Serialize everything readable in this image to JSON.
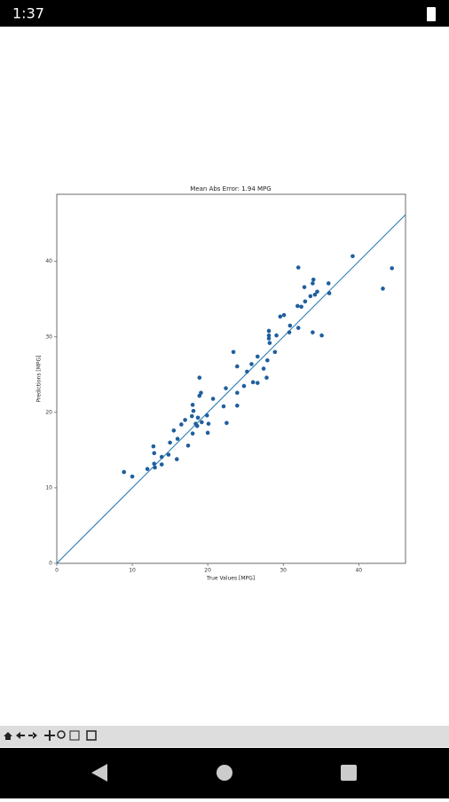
{
  "status_bar": {
    "time": "1:37"
  },
  "chart_data": {
    "type": "scatter",
    "title": "Mean Abs Error: 1.94 MPG",
    "x_label": "True Values [MPG]",
    "y_label": "Predictions [MPG]",
    "identity_line": true,
    "line_color": "#1f77b4",
    "xlim": [
      0,
      46.2
    ],
    "ylim": [
      0,
      48.9
    ],
    "xticks": [
      0,
      10,
      20,
      30,
      40
    ],
    "yticks": [
      0,
      10,
      20,
      30,
      40
    ],
    "series": [
      {
        "color": "#1f5f9e",
        "x": [
          8.9,
          10,
          12,
          12.8,
          12.9,
          12.9,
          13,
          13.9,
          13.9,
          14.8,
          15,
          15.5,
          15.9,
          16,
          16.5,
          17,
          17.4,
          17.9,
          18,
          18.1,
          18,
          18.4,
          18.6,
          18.7,
          18.9,
          19.1,
          18.9,
          19.2,
          19.9,
          20,
          20.1,
          20.7,
          22.1,
          22.4,
          22.5,
          23.4,
          23.9,
          23.9,
          23.9,
          24.8,
          25.2,
          25.8,
          26,
          26.6,
          26.6,
          27.4,
          27.8,
          27.9,
          28.1,
          28.1,
          28.1,
          28.2,
          28.9,
          29.1,
          29.6,
          30.1,
          30.8,
          30.9,
          31.9,
          32,
          32,
          32.4,
          32.8,
          32.9,
          33.6,
          33.9,
          33.9,
          34,
          34.2,
          34.5,
          35.1,
          36,
          36.1,
          39.2,
          43.2,
          44.4
        ],
        "values": [
          12.1,
          11.5,
          12.5,
          15.5,
          14.6,
          13.2,
          12.7,
          13.1,
          14.1,
          14.4,
          16,
          17.6,
          13.8,
          16.5,
          18.4,
          19,
          15.6,
          19.5,
          21,
          20.2,
          17.2,
          18.5,
          18.2,
          19.3,
          22.2,
          22.6,
          24.6,
          18.7,
          19.6,
          17.3,
          18.5,
          21.8,
          20.8,
          23.2,
          18.6,
          28,
          26.1,
          22.6,
          20.9,
          23.5,
          25.4,
          26.4,
          24,
          27.4,
          23.9,
          25.8,
          24.6,
          26.9,
          29.8,
          30.2,
          30.8,
          29.2,
          28,
          30.2,
          32.7,
          32.9,
          30.6,
          31.5,
          34.1,
          39.2,
          31.2,
          34,
          36.6,
          34.7,
          35.4,
          37.1,
          30.6,
          37.6,
          35.6,
          36,
          30.2,
          37.1,
          35.8,
          40.7,
          36.4,
          39.1
        ]
      }
    ]
  }
}
